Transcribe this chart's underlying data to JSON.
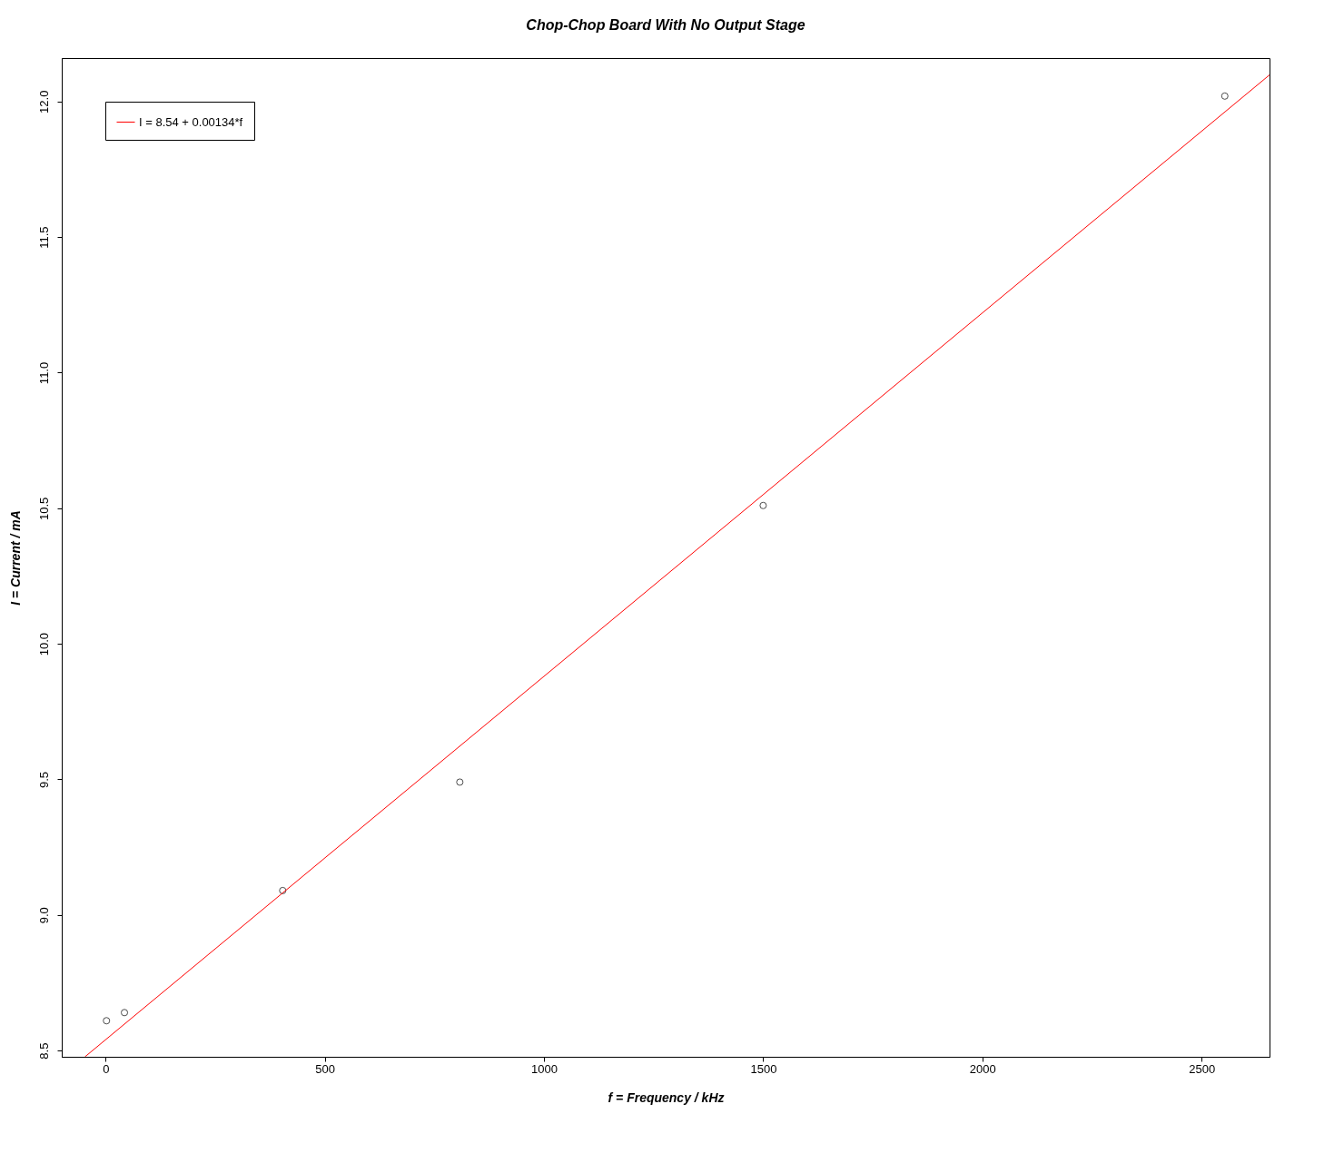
{
  "chart_data": {
    "type": "scatter",
    "title": "Chop-Chop Board With No Output Stage",
    "xlabel": "f = Frequency / kHz",
    "ylabel": "I = Current / mA",
    "xlim": [
      -100,
      2655
    ],
    "ylim": [
      8.477,
      12.16
    ],
    "xticks": [
      0,
      500,
      1000,
      1500,
      2000,
      2500
    ],
    "yticks": [
      8.5,
      {
        "value": 9,
        "label": "9.0"
      },
      9.5,
      {
        "value": 10,
        "label": "10.0"
      },
      10.5,
      {
        "value": 11,
        "label": "11.0"
      },
      11.5,
      {
        "value": 12,
        "label": "12.0"
      }
    ],
    "grid": false,
    "legend": "top left",
    "series": [
      {
        "color": "#000000",
        "marker": "circle",
        "x": [
          2,
          43,
          404,
          808,
          1500,
          2553
        ],
        "values": [
          8.61,
          8.64,
          9.09,
          9.49,
          10.51,
          12.02
        ]
      },
      {
        "type": "line",
        "name": "I = 8.54 + 0.00134*f",
        "color": "#ff0000",
        "line_style": "solid",
        "x": [
          -47,
          2655
        ],
        "values": [
          8.477,
          12.098
        ]
      }
    ]
  }
}
